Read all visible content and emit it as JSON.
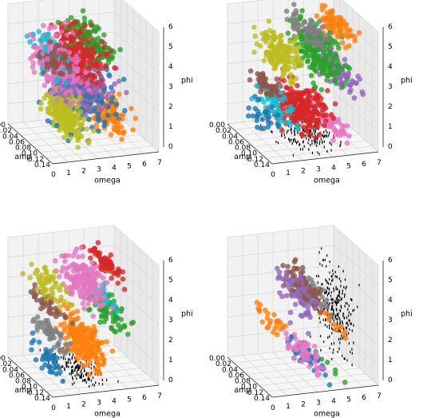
{
  "chart_data": [
    {
      "type": "scatter3d",
      "panel": "top-left",
      "xlabel": "omega",
      "ylabel": "amp",
      "zlabel": "phi",
      "x_ticks": [
        "0",
        "1",
        "2",
        "3",
        "4",
        "5",
        "6",
        "7"
      ],
      "y_ticks": [
        "0.00",
        "0.02",
        "0.04",
        "0.06",
        "0.08",
        "0.10",
        "0.12",
        "0.14"
      ],
      "z_ticks": [
        "0",
        "1",
        "2",
        "3",
        "4",
        "5",
        "6"
      ],
      "xlim": [
        0,
        7
      ],
      "ylim": [
        0,
        0.14
      ],
      "zlim": [
        0,
        6
      ],
      "grid": true,
      "clusters": [
        {
          "color": "#bcbd22",
          "x": [
            1.0,
            3.2
          ],
          "y": [
            0.02,
            0.14
          ],
          "z": [
            0.0,
            3.0
          ],
          "n": 230
        },
        {
          "color": "#9467bd",
          "x": [
            0.5,
            6.0
          ],
          "y": [
            0.0,
            0.14
          ],
          "z": [
            1.5,
            4.0
          ],
          "n": 200
        },
        {
          "color": "#d62728",
          "x": [
            1.5,
            5.0
          ],
          "y": [
            0.0,
            0.14
          ],
          "z": [
            2.5,
            6.0
          ],
          "n": 260
        },
        {
          "color": "#e377c2",
          "x": [
            0.0,
            3.5
          ],
          "y": [
            0.0,
            0.14
          ],
          "z": [
            2.0,
            6.0
          ],
          "n": 170
        },
        {
          "color": "#ff7f0e",
          "x": [
            3.5,
            6.5
          ],
          "y": [
            0.0,
            0.14
          ],
          "z": [
            0.0,
            2.5
          ],
          "n": 150
        },
        {
          "color": "#1f77b4",
          "x": [
            0.5,
            6.0
          ],
          "y": [
            0.0,
            0.14
          ],
          "z": [
            0.0,
            4.0
          ],
          "n": 130
        },
        {
          "color": "#2ca02c",
          "x": [
            2.5,
            5.5
          ],
          "y": [
            0.0,
            0.14
          ],
          "z": [
            3.5,
            6.0
          ],
          "n": 110
        },
        {
          "color": "#8c564b",
          "x": [
            0.0,
            2.0
          ],
          "y": [
            0.06,
            0.14
          ],
          "z": [
            3.5,
            5.5
          ],
          "n": 50
        },
        {
          "color": "#17becf",
          "x": [
            0.0,
            2.0
          ],
          "y": [
            0.0,
            0.14
          ],
          "z": [
            3.0,
            6.0
          ],
          "n": 40
        }
      ]
    },
    {
      "type": "scatter3d",
      "panel": "top-right",
      "xlabel": "omega",
      "ylabel": "amp",
      "zlabel": "phi",
      "x_ticks": [
        "0",
        "1",
        "2",
        "3",
        "4",
        "5",
        "6",
        "7"
      ],
      "y_ticks": [
        "0.00",
        "0.02",
        "0.04",
        "0.06",
        "0.08",
        "0.10",
        "0.12",
        "0.14"
      ],
      "z_ticks": [
        "0",
        "1",
        "2",
        "3",
        "4",
        "5",
        "6"
      ],
      "xlim": [
        0,
        7
      ],
      "ylim": [
        0,
        0.14
      ],
      "zlim": [
        0,
        6
      ],
      "grid": true,
      "clusters": [
        {
          "color": "#d62728",
          "x": [
            1.5,
            5.5
          ],
          "y": [
            0.0,
            0.12
          ],
          "z": [
            0.0,
            3.0
          ],
          "n": 260
        },
        {
          "color": "#2ca02c",
          "x": [
            3.0,
            6.0
          ],
          "y": [
            0.0,
            0.14
          ],
          "z": [
            2.5,
            6.0
          ],
          "n": 200
        },
        {
          "color": "#bcbd22",
          "x": [
            0.5,
            3.0
          ],
          "y": [
            0.02,
            0.14
          ],
          "z": [
            3.0,
            6.0
          ],
          "n": 160
        },
        {
          "color": "#7f7f7f",
          "x": [
            3.0,
            5.0
          ],
          "y": [
            0.0,
            0.14
          ],
          "z": [
            4.5,
            6.0
          ],
          "n": 90
        },
        {
          "color": "#ff7f0e",
          "x": [
            5.0,
            6.5
          ],
          "y": [
            0.0,
            0.14
          ],
          "z": [
            4.5,
            6.2
          ],
          "n": 70
        },
        {
          "color": "#9467bd",
          "x": [
            5.0,
            6.8
          ],
          "y": [
            0.0,
            0.14
          ],
          "z": [
            2.0,
            4.0
          ],
          "n": 80
        },
        {
          "color": "#e377c2",
          "x": [
            4.5,
            6.0
          ],
          "y": [
            0.0,
            0.14
          ],
          "z": [
            0.0,
            1.5
          ],
          "n": 60
        },
        {
          "color": "#17becf",
          "x": [
            0.5,
            2.5
          ],
          "y": [
            0.0,
            0.14
          ],
          "z": [
            1.0,
            3.0
          ],
          "n": 60
        },
        {
          "color": "#8c564b",
          "x": [
            0.0,
            1.0
          ],
          "y": [
            0.04,
            0.14
          ],
          "z": [
            2.5,
            4.0
          ],
          "n": 40
        },
        {
          "color": "#1f77b4",
          "x": [
            0.0,
            1.5
          ],
          "y": [
            0.02,
            0.14
          ],
          "z": [
            0.5,
            2.5
          ],
          "n": 30
        },
        {
          "color": "#000000",
          "x": [
            1.0,
            6.5
          ],
          "y": [
            0.0,
            0.14
          ],
          "z": [
            0.0,
            0.3
          ],
          "n": 180
        }
      ]
    },
    {
      "type": "scatter3d",
      "panel": "bottom-left",
      "xlabel": "omega",
      "ylabel": "amp",
      "zlabel": "phi",
      "x_ticks": [
        "0",
        "1",
        "2",
        "3",
        "4",
        "5",
        "6",
        "7"
      ],
      "y_ticks": [
        "0.00",
        "0.02",
        "0.04",
        "0.06",
        "0.08",
        "0.10",
        "0.12",
        "0.14"
      ],
      "z_ticks": [
        "0",
        "1",
        "2",
        "3",
        "4",
        "5",
        "6"
      ],
      "xlim": [
        0,
        7
      ],
      "ylim": [
        0,
        0.14
      ],
      "zlim": [
        0,
        6
      ],
      "grid": true,
      "clusters": [
        {
          "color": "#e377c2",
          "x": [
            2.5,
            4.5
          ],
          "y": [
            0.0,
            0.14
          ],
          "z": [
            3.0,
            6.0
          ],
          "n": 180
        },
        {
          "color": "#ff7f0e",
          "x": [
            2.5,
            4.5
          ],
          "y": [
            0.0,
            0.14
          ],
          "z": [
            0.0,
            3.0
          ],
          "n": 200
        },
        {
          "color": "#d62728",
          "x": [
            4.5,
            5.5
          ],
          "y": [
            0.0,
            0.14
          ],
          "z": [
            4.5,
            6.0
          ],
          "n": 60
        },
        {
          "color": "#2ca02c",
          "x": [
            4.5,
            6.0
          ],
          "y": [
            0.0,
            0.14
          ],
          "z": [
            1.5,
            4.0
          ],
          "n": 70
        },
        {
          "color": "#bcbd22",
          "x": [
            0.5,
            2.0
          ],
          "y": [
            0.0,
            0.14
          ],
          "z": [
            3.5,
            5.5
          ],
          "n": 60
        },
        {
          "color": "#8c564b",
          "x": [
            0.5,
            2.0
          ],
          "y": [
            0.0,
            0.14
          ],
          "z": [
            3.0,
            4.0
          ],
          "n": 40
        },
        {
          "color": "#7f7f7f",
          "x": [
            0.5,
            2.0
          ],
          "y": [
            0.0,
            0.14
          ],
          "z": [
            1.5,
            3.0
          ],
          "n": 50
        },
        {
          "color": "#1f77b4",
          "x": [
            0.5,
            2.0
          ],
          "y": [
            0.0,
            0.14
          ],
          "z": [
            0.0,
            1.5
          ],
          "n": 40
        },
        {
          "color": "#17becf",
          "x": [
            4.0,
            4.8
          ],
          "y": [
            0.0,
            0.14
          ],
          "z": [
            3.0,
            5.0
          ],
          "n": 30
        },
        {
          "color": "#000000",
          "x": [
            1.0,
            5.0
          ],
          "y": [
            0.0,
            0.14
          ],
          "z": [
            0.0,
            0.3
          ],
          "n": 160
        }
      ]
    },
    {
      "type": "scatter3d",
      "panel": "bottom-right",
      "xlabel": "omega",
      "ylabel": "amp",
      "zlabel": "phi",
      "x_ticks": [
        "0",
        "1",
        "2",
        "3",
        "4",
        "5",
        "6",
        "7"
      ],
      "y_ticks": [
        "0.00",
        "0.02",
        "0.04",
        "0.06",
        "0.08",
        "0.10",
        "0.12",
        "0.14"
      ],
      "z_ticks": [
        "0",
        "1",
        "2",
        "3",
        "4",
        "5",
        "6"
      ],
      "xlim": [
        0,
        7
      ],
      "ylim": [
        0,
        0.14
      ],
      "zlim": [
        0,
        6
      ],
      "grid": true,
      "clusters": [
        {
          "color": "#000000",
          "x": [
            5.0,
            6.2
          ],
          "y": [
            0.0,
            0.14
          ],
          "z": [
            0.0,
            6.0
          ],
          "n": 260
        },
        {
          "color": "#8c564b",
          "x": [
            3.0,
            4.0
          ],
          "y": [
            0.0,
            0.14
          ],
          "z": [
            3.0,
            5.5
          ],
          "n": 80
        },
        {
          "color": "#7f7f7f",
          "x": [
            3.5,
            4.2
          ],
          "y": [
            0.0,
            0.14
          ],
          "z": [
            3.0,
            5.0
          ],
          "n": 50
        },
        {
          "color": "#9467bd",
          "x": [
            2.8,
            3.4
          ],
          "y": [
            0.0,
            0.14
          ],
          "z": [
            2.0,
            5.5
          ],
          "n": 60
        },
        {
          "color": "#e377c2",
          "x": [
            3.0,
            4.0
          ],
          "y": [
            0.0,
            0.14
          ],
          "z": [
            0.0,
            2.0
          ],
          "n": 50
        },
        {
          "color": "#1f77b4",
          "x": [
            3.5,
            4.2
          ],
          "y": [
            0.0,
            0.14
          ],
          "z": [
            0.0,
            1.5
          ],
          "n": 40
        },
        {
          "color": "#ff7f0e",
          "x": [
            1.0,
            1.8
          ],
          "y": [
            0.0,
            0.14
          ],
          "z": [
            2.0,
            3.5
          ],
          "n": 25
        },
        {
          "color": "#ff7f0e",
          "x": [
            5.0,
            5.3
          ],
          "y": [
            0.0,
            0.14
          ],
          "z": [
            2.0,
            3.0
          ],
          "n": 15
        },
        {
          "color": "#2ca02c",
          "x": [
            5.0,
            5.3
          ],
          "y": [
            0.0,
            0.14
          ],
          "z": [
            0.0,
            0.5
          ],
          "n": 6
        }
      ]
    }
  ]
}
